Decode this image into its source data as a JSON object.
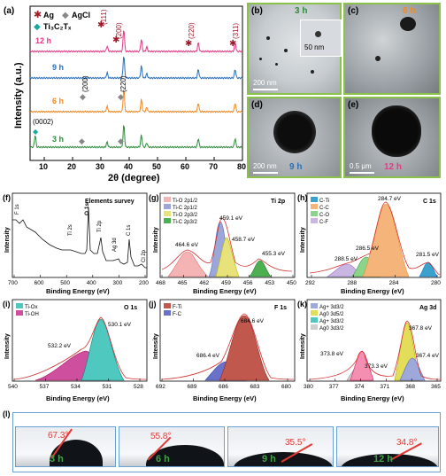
{
  "panel_labels": {
    "a": "(a)",
    "b": "(b)",
    "c": "(c)",
    "d": "(d)",
    "e": "(e)",
    "f": "(f)",
    "g": "(g)",
    "h": "(h)",
    "i": "(i)",
    "j": "(j)",
    "k": "(k)",
    "l": "(l)"
  },
  "xrd": {
    "legend": {
      "ag": "Ag",
      "agcl": "AgCl",
      "ti3c2": "Ti₃C₂Tₓ"
    },
    "xlabel": "2θ (degree)",
    "ylabel": "Intensity (a.u.)",
    "xticks": [
      "10",
      "20",
      "30",
      "40",
      "50",
      "60",
      "70",
      "80"
    ],
    "traces": [
      {
        "label": "12 h",
        "color": "#e63a87"
      },
      {
        "label": "9 h",
        "color": "#2a6fb8"
      },
      {
        "label": "6 h",
        "color": "#f08a24"
      },
      {
        "label": "3 h",
        "color": "#2e8b3c"
      }
    ],
    "peak_labels": {
      "p111": "(111)",
      "p200": "(200)",
      "p220": "(220)",
      "p311": "(311)",
      "c200": "(200)",
      "c220": "(220)",
      "p0002": "(0002)"
    }
  },
  "tem": {
    "b": {
      "time": "3 h",
      "scale": "200 nm",
      "inset_scale": "50 nm"
    },
    "c": {
      "time": "6 h"
    },
    "d": {
      "time": "9 h",
      "scale": "200 nm"
    },
    "e": {
      "time": "12 h",
      "scale": "0.5 μm"
    }
  },
  "xps": {
    "xlabel": "Binding Energy (eV)",
    "ylabel": "Intensity",
    "f": {
      "title": "Elements survey",
      "xticks": [
        "700",
        "600",
        "500",
        "400",
        "300",
        "200"
      ],
      "peaks": [
        "F 1s",
        "O 1s",
        "Ti 2s",
        "Ti 2p",
        "Ag 3d",
        "C 1s",
        "Cl 2p"
      ]
    },
    "g": {
      "title": "Ti 2p",
      "xticks": [
        "468",
        "465",
        "462",
        "459",
        "456",
        "453",
        "450"
      ],
      "legend": [
        "Ti-O 2p1/2",
        "Ti-C 2p1/2",
        "Ti-O 2p3/2",
        "Ti-C 2p3/2"
      ],
      "peaks": [
        "464.6 eV",
        "459.1 eV",
        "458.7 eV",
        "455.3 eV"
      ]
    },
    "h": {
      "title": "C 1s",
      "xticks": [
        "292",
        "288",
        "284",
        "280"
      ],
      "legend": [
        "C-Ti",
        "C-C",
        "C-O",
        "C-F"
      ],
      "peaks": [
        "284.7 eV",
        "286.5 eV",
        "288.5 eV",
        "281.5 eV"
      ]
    },
    "i": {
      "title": "O 1s",
      "xticks": [
        "540",
        "537",
        "534",
        "531",
        "528"
      ],
      "legend": [
        "Ti-Ox",
        "Ti-OH"
      ],
      "peaks": [
        "532.2 eV",
        "530.1 eV"
      ]
    },
    "j": {
      "title": "F 1s",
      "xticks": [
        "692",
        "689",
        "686",
        "683",
        "680"
      ],
      "legend": [
        "F-Ti",
        "F-C"
      ],
      "peaks": [
        "684.6 eV",
        "686.4 eV"
      ]
    },
    "k": {
      "title": "Ag 3d",
      "xticks": [
        "380",
        "377",
        "374",
        "371",
        "368",
        "365"
      ],
      "legend": [
        "Ag+ 3d3/2",
        "Ag0 3d5/2",
        "Ag+ 3d3/2",
        "Ag0 3d3/2"
      ],
      "peaks": [
        "373.8 eV",
        "373.3 eV",
        "367.8 eV",
        "367.4 eV"
      ]
    }
  },
  "contact": [
    {
      "angle": "67.3°",
      "time": "3 h"
    },
    {
      "angle": "55.8°",
      "time": "6 h"
    },
    {
      "angle": "35.5°",
      "time": "9 h"
    },
    {
      "angle": "34.8°",
      "time": "12 h"
    }
  ],
  "colors": {
    "frame_green": "#8bc34a",
    "drop_blue": "#6aa0d4",
    "angle_red": "#e53935"
  }
}
